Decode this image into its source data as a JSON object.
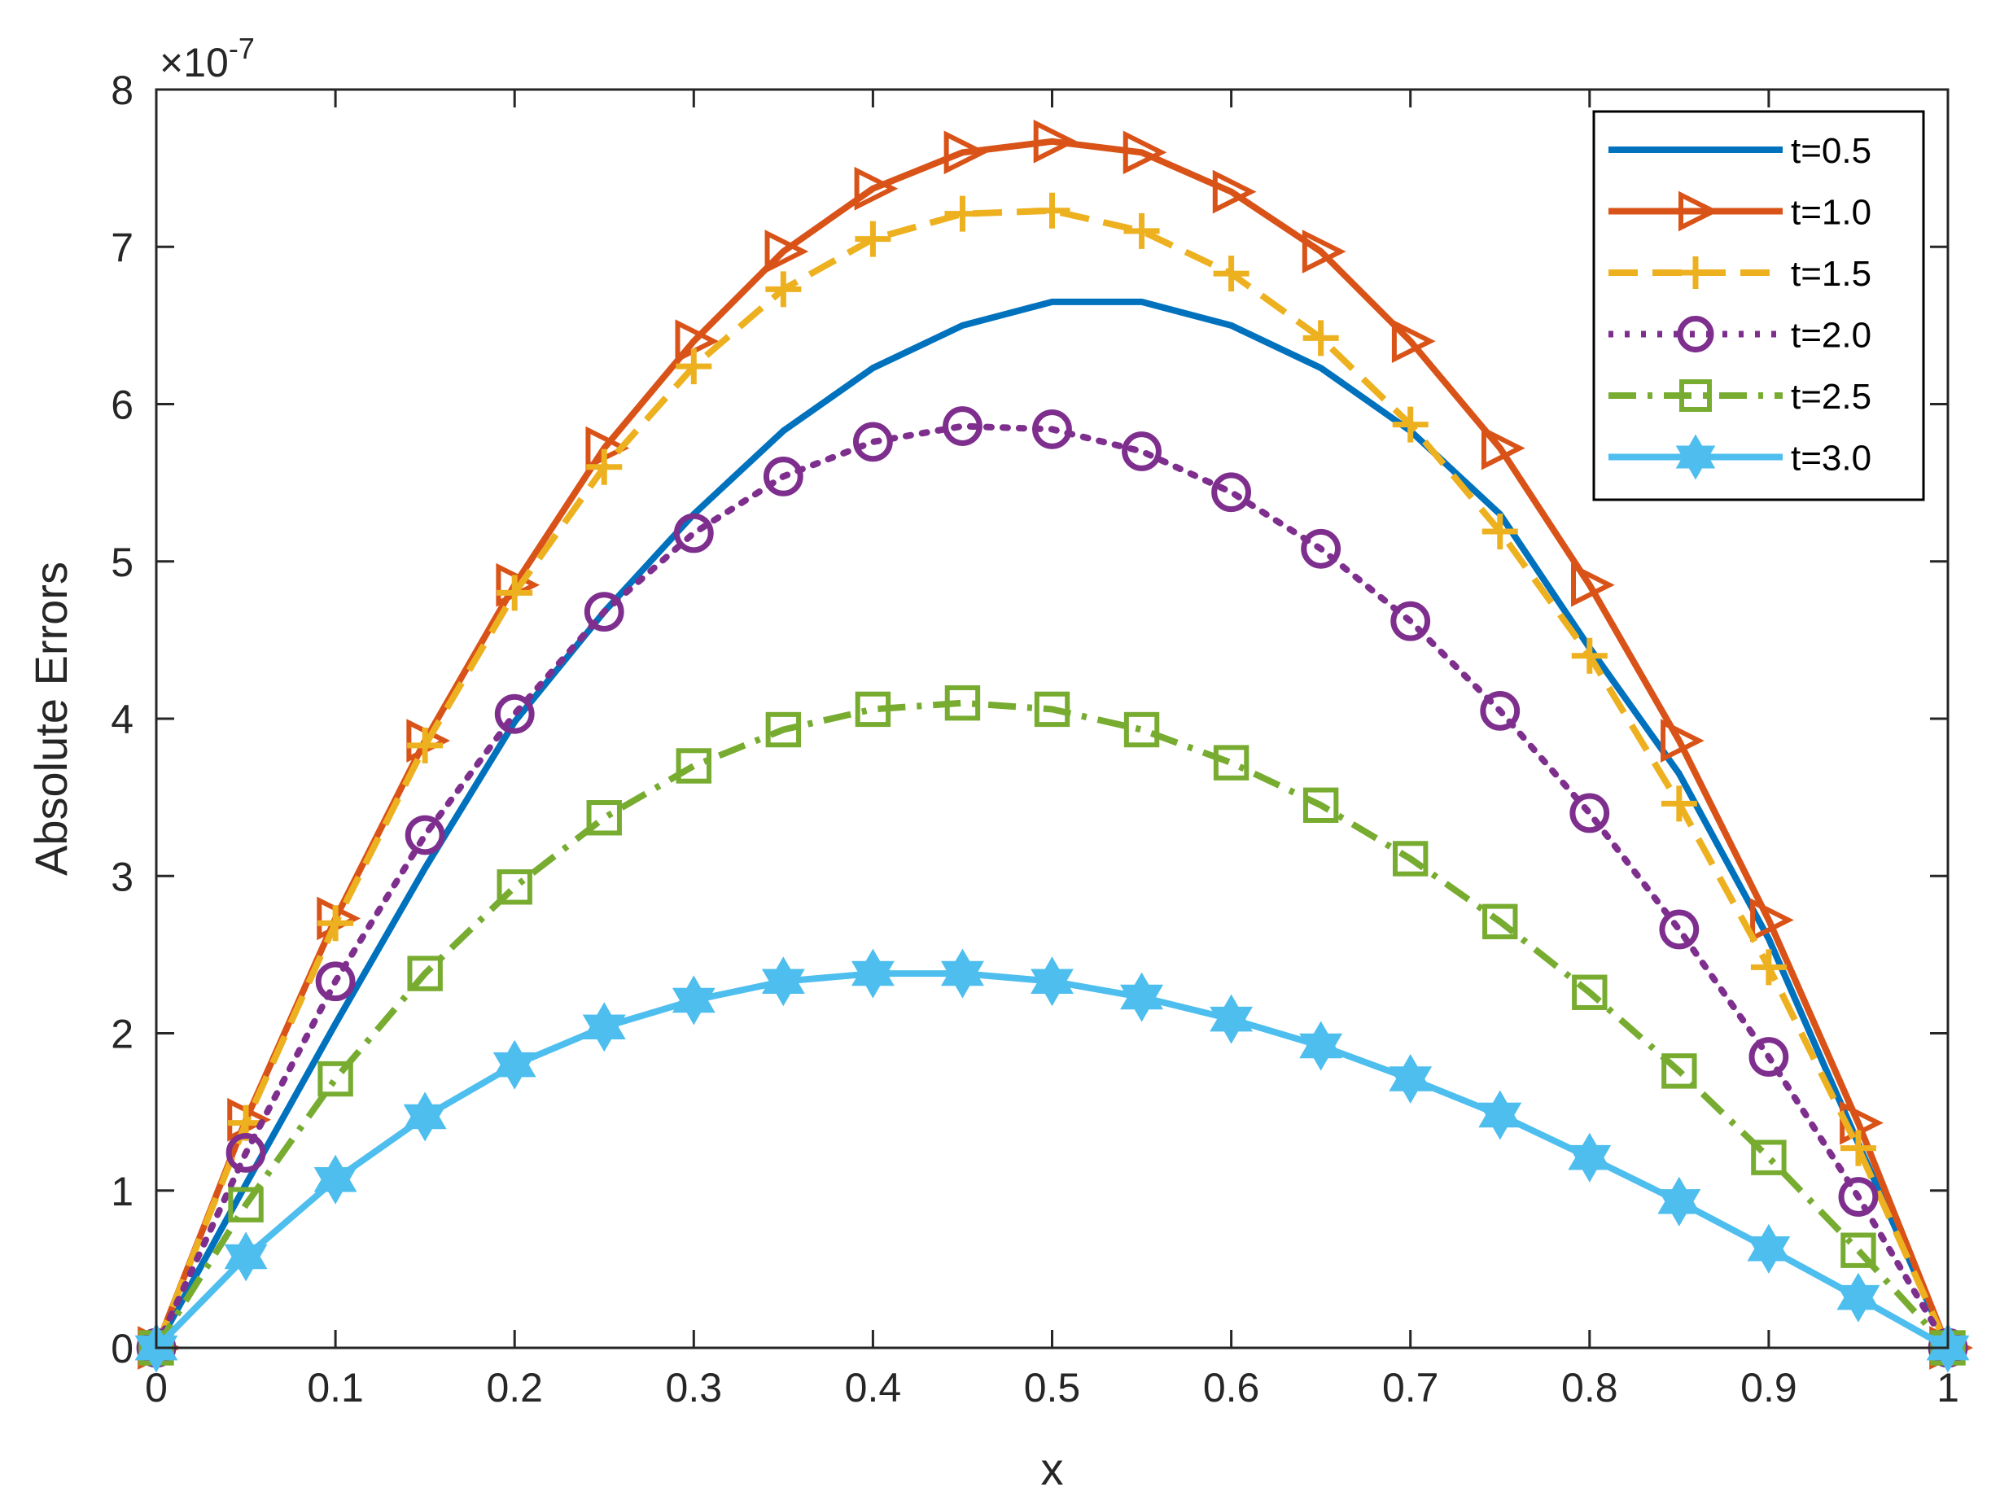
{
  "chart_data": {
    "type": "line",
    "title": "",
    "xlabel": "x",
    "ylabel": "Absolute Errors",
    "exponent_base": "×10",
    "exponent_power": "-7",
    "xlim": [
      0,
      1
    ],
    "ylim": [
      0,
      8
    ],
    "xticks": [
      0,
      0.1,
      0.2,
      0.3,
      0.4,
      0.5,
      0.6,
      0.7,
      0.8,
      0.9,
      1
    ],
    "xtick_labels": [
      "0",
      "0.1",
      "0.2",
      "0.3",
      "0.4",
      "0.5",
      "0.6",
      "0.7",
      "0.8",
      "0.9",
      "1"
    ],
    "yticks": [
      0,
      1,
      2,
      3,
      4,
      5,
      6,
      7,
      8
    ],
    "ytick_labels": [
      "0",
      "1",
      "2",
      "3",
      "4",
      "5",
      "6",
      "7",
      "8"
    ],
    "legend_position": "top-right",
    "x": [
      0,
      0.05,
      0.1,
      0.15,
      0.2,
      0.25,
      0.3,
      0.35,
      0.4,
      0.45,
      0.5,
      0.55,
      0.6,
      0.65,
      0.7,
      0.75,
      0.8,
      0.85,
      0.9,
      0.95,
      1
    ],
    "series": [
      {
        "name": "t=0.5",
        "color": "#0072BD",
        "line_style": "solid",
        "marker": "none",
        "values": [
          0,
          1.04,
          2.06,
          3.05,
          3.98,
          4.68,
          5.3,
          5.83,
          6.23,
          6.5,
          6.65,
          6.65,
          6.5,
          6.23,
          5.83,
          5.3,
          4.45,
          3.65,
          2.6,
          1.3,
          0
        ]
      },
      {
        "name": "t=1.0",
        "color": "#D95319",
        "line_style": "solid",
        "marker": "triangle-right",
        "values": [
          0,
          1.45,
          2.73,
          3.86,
          4.85,
          5.72,
          6.4,
          6.97,
          7.37,
          7.6,
          7.67,
          7.6,
          7.35,
          6.97,
          6.4,
          5.72,
          4.85,
          3.86,
          2.72,
          1.43,
          0
        ]
      },
      {
        "name": "t=1.5",
        "color": "#EDB120",
        "line_style": "dashed",
        "marker": "plus",
        "values": [
          0,
          1.43,
          2.7,
          3.83,
          4.8,
          5.6,
          6.24,
          6.73,
          7.05,
          7.21,
          7.23,
          7.1,
          6.83,
          6.42,
          5.87,
          5.19,
          4.4,
          3.46,
          2.42,
          1.27,
          0
        ]
      },
      {
        "name": "t=2.0",
        "color": "#7E2F8E",
        "line_style": "dotted",
        "marker": "circle",
        "values": [
          0,
          1.24,
          2.33,
          3.26,
          4.03,
          4.68,
          5.18,
          5.54,
          5.76,
          5.86,
          5.84,
          5.7,
          5.44,
          5.08,
          4.62,
          4.05,
          3.4,
          2.66,
          1.85,
          0.96,
          0
        ]
      },
      {
        "name": "t=2.5",
        "color": "#77AC30",
        "line_style": "dashdot",
        "marker": "square",
        "values": [
          0,
          0.91,
          1.71,
          2.38,
          2.93,
          3.37,
          3.7,
          3.93,
          4.06,
          4.1,
          4.06,
          3.93,
          3.72,
          3.45,
          3.11,
          2.71,
          2.26,
          1.76,
          1.21,
          0.62,
          0
        ]
      },
      {
        "name": "t=3.0",
        "color": "#4DBEEE",
        "line_style": "solid",
        "marker": "hexagram",
        "values": [
          0,
          0.58,
          1.07,
          1.47,
          1.8,
          2.04,
          2.21,
          2.33,
          2.38,
          2.38,
          2.33,
          2.23,
          2.09,
          1.92,
          1.71,
          1.48,
          1.21,
          0.93,
          0.63,
          0.32,
          0
        ]
      }
    ]
  }
}
